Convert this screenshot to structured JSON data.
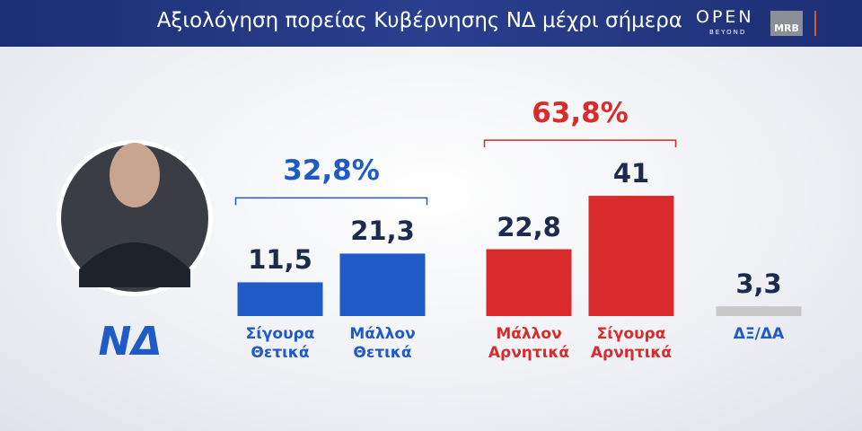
{
  "chart_data": {
    "type": "bar",
    "title": "Αξιολόγηση πορείας Κυβέρνησης ΝΔ μέχρι σήμερα",
    "channel_logo": "OPEN",
    "channel_sub": "BEYOND",
    "pollster": "MRB",
    "party_logo": "ΝΔ",
    "categories": [
      "Σίγουρα Θετικά",
      "Μάλλον Θετικά",
      "Μάλλον Αρνητικά",
      "Σίγουρα Αρνητικά",
      "ΔΞ/ΔΑ"
    ],
    "values": [
      11.5,
      21.3,
      22.8,
      41,
      3.3
    ],
    "value_labels": [
      "11,5",
      "21,3",
      "22,8",
      "41",
      "3,3"
    ],
    "colors": [
      "#1e5bc6",
      "#1e5bc6",
      "#d92b2b",
      "#d92b2b",
      "#c8c8c8"
    ],
    "label_colors": [
      "#1e5bc6",
      "#1e5bc6",
      "#d92b2b",
      "#d92b2b",
      "#1e5bc6"
    ],
    "ylim": [
      0,
      45
    ],
    "groups": [
      {
        "value": 32.8,
        "value_label": "32,8%",
        "color": "#1e5bc6"
      },
      {
        "value": 63.8,
        "value_label": "63,8%",
        "color": "#d92b2b"
      }
    ]
  }
}
